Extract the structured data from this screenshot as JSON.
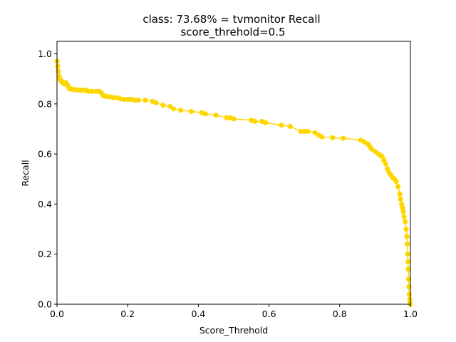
{
  "chart_data": {
    "type": "line",
    "title_line1": "class: 73.68% = tvmonitor Recall",
    "title_line2": "score_threhold=0.5",
    "xlabel": "Score_Threhold",
    "ylabel": "Recall",
    "xlim": [
      0,
      1
    ],
    "ylim": [
      0,
      1.05
    ],
    "grid": false,
    "xticks": [
      0.0,
      0.2,
      0.4,
      0.6,
      0.8,
      1.0
    ],
    "xtick_labels": [
      "0.0",
      "0.2",
      "0.4",
      "0.6",
      "0.8",
      "1.0"
    ],
    "yticks": [
      0.0,
      0.2,
      0.4,
      0.6,
      0.8,
      1.0
    ],
    "ytick_labels": [
      "0.0",
      "0.2",
      "0.4",
      "0.6",
      "0.8",
      "1.0"
    ],
    "series": [
      {
        "name": "Recall",
        "color": "#ffd700",
        "marker": "circle",
        "x": [
          0.0,
          0.002,
          0.004,
          0.006,
          0.008,
          0.01,
          0.013,
          0.016,
          0.02,
          0.025,
          0.03,
          0.033,
          0.036,
          0.04,
          0.045,
          0.05,
          0.055,
          0.06,
          0.065,
          0.07,
          0.075,
          0.08,
          0.085,
          0.09,
          0.1,
          0.11,
          0.12,
          0.125,
          0.13,
          0.135,
          0.14,
          0.15,
          0.16,
          0.17,
          0.18,
          0.19,
          0.2,
          0.21,
          0.22,
          0.23,
          0.25,
          0.27,
          0.28,
          0.3,
          0.32,
          0.33,
          0.35,
          0.38,
          0.41,
          0.42,
          0.45,
          0.48,
          0.49,
          0.5,
          0.55,
          0.56,
          0.58,
          0.59,
          0.635,
          0.66,
          0.69,
          0.7,
          0.71,
          0.73,
          0.74,
          0.75,
          0.78,
          0.81,
          0.86,
          0.87,
          0.88,
          0.885,
          0.89,
          0.9,
          0.91,
          0.915,
          0.92,
          0.925,
          0.93,
          0.935,
          0.94,
          0.945,
          0.95,
          0.955,
          0.96,
          0.965,
          0.97,
          0.972,
          0.975,
          0.978,
          0.98,
          0.982,
          0.985,
          0.988,
          0.99,
          0.991,
          0.992,
          0.993,
          0.994,
          0.995,
          0.996,
          0.997,
          0.998,
          0.999,
          1.0
        ],
        "y": [
          0.97,
          0.95,
          0.93,
          0.91,
          0.9,
          0.895,
          0.89,
          0.885,
          0.88,
          0.885,
          0.875,
          0.865,
          0.86,
          0.86,
          0.858,
          0.857,
          0.856,
          0.856,
          0.855,
          0.855,
          0.855,
          0.855,
          0.853,
          0.85,
          0.85,
          0.85,
          0.85,
          0.845,
          0.835,
          0.83,
          0.83,
          0.828,
          0.825,
          0.825,
          0.82,
          0.818,
          0.818,
          0.818,
          0.815,
          0.815,
          0.815,
          0.81,
          0.805,
          0.795,
          0.79,
          0.78,
          0.775,
          0.77,
          0.765,
          0.76,
          0.755,
          0.745,
          0.745,
          0.74,
          0.735,
          0.73,
          0.73,
          0.725,
          0.715,
          0.71,
          0.69,
          0.69,
          0.69,
          0.685,
          0.675,
          0.668,
          0.665,
          0.663,
          0.655,
          0.648,
          0.64,
          0.63,
          0.62,
          0.61,
          0.6,
          0.595,
          0.59,
          0.575,
          0.56,
          0.54,
          0.525,
          0.515,
          0.505,
          0.5,
          0.49,
          0.47,
          0.44,
          0.42,
          0.4,
          0.385,
          0.37,
          0.35,
          0.33,
          0.3,
          0.27,
          0.24,
          0.2,
          0.17,
          0.14,
          0.1,
          0.07,
          0.04,
          0.02,
          0.005,
          0.0
        ]
      }
    ]
  }
}
